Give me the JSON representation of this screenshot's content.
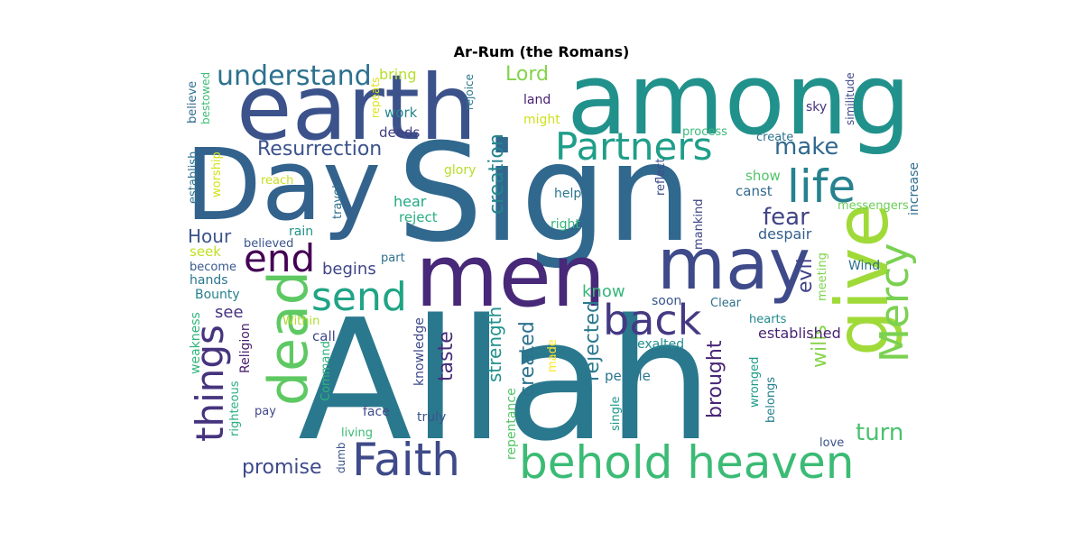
{
  "title": "Ar-Rum (the Romans)",
  "words": [
    {
      "text": "Allah",
      "color": "#2a788e"
    },
    {
      "text": "Sign",
      "color": "#31688e"
    },
    {
      "text": "Day",
      "color": "#33638d"
    },
    {
      "text": "among",
      "color": "#21918c"
    },
    {
      "text": "earth",
      "color": "#3b528b"
    },
    {
      "text": "men",
      "color": "#482878"
    },
    {
      "text": "may",
      "color": "#3e4a89"
    },
    {
      "text": "give",
      "color": "#a0da39"
    },
    {
      "text": "dead",
      "color": "#5ec962"
    },
    {
      "text": "behold heaven",
      "color": "#3bbb75"
    },
    {
      "text": "Faith",
      "color": "#3e4a89"
    },
    {
      "text": "Partners",
      "color": "#1f9e89"
    },
    {
      "text": "back",
      "color": "#443983"
    },
    {
      "text": "send",
      "color": "#20a486"
    },
    {
      "text": "Mercy",
      "color": "#7ad151"
    },
    {
      "text": "life",
      "color": "#26828e"
    },
    {
      "text": "things",
      "color": "#46337e"
    },
    {
      "text": "end",
      "color": "#440154"
    },
    {
      "text": "understand",
      "color": "#2c718e"
    },
    {
      "text": "turn",
      "color": "#4ac16d"
    },
    {
      "text": "Resurrection",
      "color": "#3b528b"
    },
    {
      "text": "creation",
      "color": "#25858e"
    },
    {
      "text": "make",
      "color": "#31688e"
    },
    {
      "text": "fear",
      "color": "#414487"
    },
    {
      "text": "evil",
      "color": "#404387"
    },
    {
      "text": "wills",
      "color": "#86d549"
    },
    {
      "text": "promise",
      "color": "#3e4a89"
    },
    {
      "text": "Lord",
      "color": "#84d44b"
    },
    {
      "text": "brought",
      "color": "#482677"
    },
    {
      "text": "taste",
      "color": "#472c7a"
    },
    {
      "text": "rejected",
      "color": "#2a788e"
    },
    {
      "text": "created",
      "color": "#2c728e"
    },
    {
      "text": "strength",
      "color": "#21918c"
    },
    {
      "text": "Hour",
      "color": "#3b528b"
    },
    {
      "text": "begins",
      "color": "#404688"
    },
    {
      "text": "know",
      "color": "#35b779"
    },
    {
      "text": "see",
      "color": "#463480"
    },
    {
      "text": "Wind",
      "color": "#2d708e"
    },
    {
      "text": "despair",
      "color": "#355e8d"
    },
    {
      "text": "hear",
      "color": "#22a884"
    },
    {
      "text": "reject",
      "color": "#29af7f"
    },
    {
      "text": "work",
      "color": "#25858e"
    },
    {
      "text": "deeds",
      "color": "#433e85"
    },
    {
      "text": "bring",
      "color": "#b5de2b"
    },
    {
      "text": "canst",
      "color": "#31688e"
    },
    {
      "text": "show",
      "color": "#52c569"
    },
    {
      "text": "increase",
      "color": "#2e6e8e"
    },
    {
      "text": "messengers",
      "color": "#6ccd5a"
    },
    {
      "text": "established",
      "color": "#482374"
    },
    {
      "text": "Bounty",
      "color": "#27808e"
    },
    {
      "text": "hands",
      "color": "#2a768e"
    },
    {
      "text": "become",
      "color": "#38588c"
    },
    {
      "text": "seek",
      "color": "#c2df23"
    },
    {
      "text": "believed",
      "color": "#3a548c"
    },
    {
      "text": "rain",
      "color": "#20928c"
    },
    {
      "text": "call",
      "color": "#3f4889"
    },
    {
      "text": "weakness",
      "color": "#31b57b"
    },
    {
      "text": "Religion",
      "color": "#481c6e"
    },
    {
      "text": "righteous",
      "color": "#2ab07f"
    },
    {
      "text": "pay",
      "color": "#404688"
    },
    {
      "text": "face",
      "color": "#3e4c8a"
    },
    {
      "text": "truly",
      "color": "#39568c"
    },
    {
      "text": "knowledge",
      "color": "#3e4989"
    },
    {
      "text": "living",
      "color": "#3bbb75"
    },
    {
      "text": "dumb",
      "color": "#3a538b"
    },
    {
      "text": "Command",
      "color": "#2db27d"
    },
    {
      "text": "repentance",
      "color": "#54c568"
    },
    {
      "text": "made",
      "color": "#fde725"
    },
    {
      "text": "people",
      "color": "#2a768e"
    },
    {
      "text": "single",
      "color": "#1f998a"
    },
    {
      "text": "exalted",
      "color": "#218e8d"
    },
    {
      "text": "wronged",
      "color": "#1e9b8a"
    },
    {
      "text": "belongs",
      "color": "#26818e"
    },
    {
      "text": "love",
      "color": "#3b528b"
    },
    {
      "text": "hearts",
      "color": "#23898e"
    },
    {
      "text": "soon",
      "color": "#39568c"
    },
    {
      "text": "Clear",
      "color": "#2e6f8e"
    },
    {
      "text": "meeting",
      "color": "#7fd34e"
    },
    {
      "text": "Within",
      "color": "#addc30"
    },
    {
      "text": "part",
      "color": "#2c718e"
    },
    {
      "text": "help",
      "color": "#2a778e"
    },
    {
      "text": "right",
      "color": "#33b67a"
    },
    {
      "text": "reflect",
      "color": "#3d4e8a"
    },
    {
      "text": "mankind",
      "color": "#3f4788"
    },
    {
      "text": "glory",
      "color": "#b5de2b"
    },
    {
      "text": "reach",
      "color": "#c8e020"
    },
    {
      "text": "travel",
      "color": "#2d708e"
    },
    {
      "text": "worship",
      "color": "#d5e21a"
    },
    {
      "text": "establish",
      "color": "#2c738e"
    },
    {
      "text": "believe",
      "color": "#2f6c8e"
    },
    {
      "text": "bestowed",
      "color": "#3dbc74"
    },
    {
      "text": "repeats",
      "color": "#dde318"
    },
    {
      "text": "rejoice",
      "color": "#2a788e"
    },
    {
      "text": "land",
      "color": "#482071"
    },
    {
      "text": "might",
      "color": "#d0e11c"
    },
    {
      "text": "process",
      "color": "#3ab97a"
    },
    {
      "text": "create",
      "color": "#2c718e"
    },
    {
      "text": "sky",
      "color": "#46327e"
    },
    {
      "text": "similitude",
      "color": "#3f4889"
    }
  ]
}
